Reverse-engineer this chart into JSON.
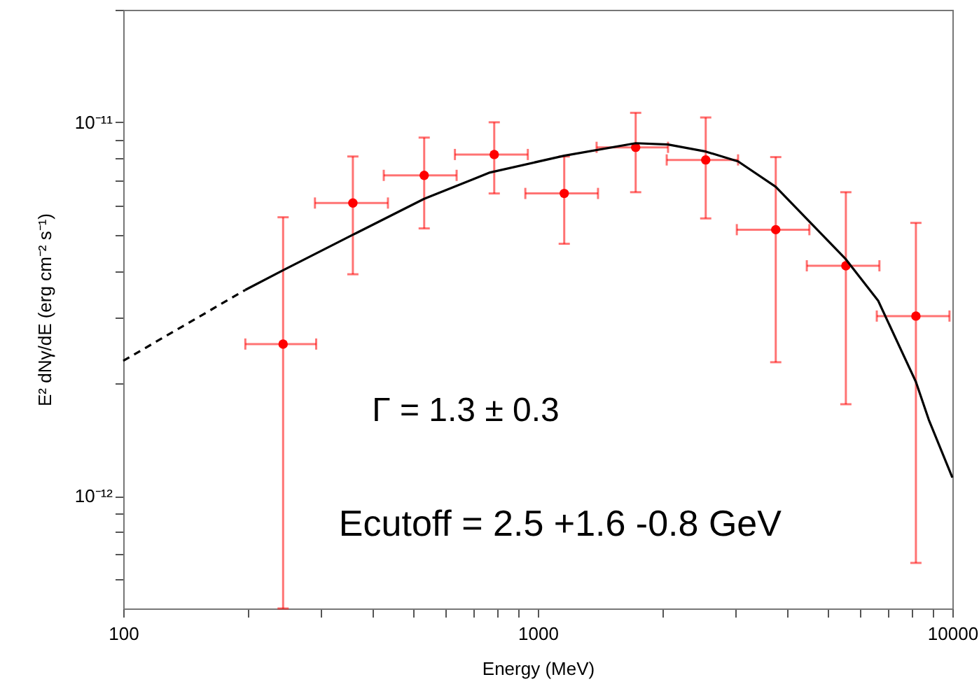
{
  "chart_data": {
    "type": "scatter",
    "xlabel": "Energy (MeV)",
    "ylabel": "E² dNγ/dE (erg cm⁻² s⁻¹)",
    "log": "xy",
    "grid": false,
    "xlim": [
      100,
      10000
    ],
    "ylim": [
      5e-13,
      2e-11
    ],
    "xticks": [
      100,
      {
        "value": 200,
        "label": null
      },
      {
        "value": 300,
        "label": null
      },
      {
        "value": 400,
        "label": null
      },
      {
        "value": 500,
        "label": null
      },
      {
        "value": 600,
        "label": null
      },
      {
        "value": 700,
        "label": null
      },
      {
        "value": 800,
        "label": null
      },
      {
        "value": 900,
        "label": null
      },
      1000,
      {
        "value": 2000,
        "label": null
      },
      {
        "value": 3000,
        "label": null
      },
      {
        "value": 4000,
        "label": null
      },
      {
        "value": 5000,
        "label": null
      },
      {
        "value": 6000,
        "label": null
      },
      {
        "value": 7000,
        "label": null
      },
      {
        "value": 8000,
        "label": null
      },
      {
        "value": 9000,
        "label": null
      },
      10000
    ],
    "yticks": [
      {
        "value": 6e-13,
        "label": null
      },
      {
        "value": 7e-13,
        "label": null
      },
      {
        "value": 8e-13,
        "label": null
      },
      {
        "value": 9e-13,
        "label": null
      },
      {
        "value": 1e-12,
        "label": "10⁻¹²"
      },
      {
        "value": 2e-12,
        "label": null
      },
      {
        "value": 3e-12,
        "label": null
      },
      {
        "value": 4e-12,
        "label": null
      },
      {
        "value": 5e-12,
        "label": null
      },
      {
        "value": 6e-12,
        "label": null
      },
      {
        "value": 7e-12,
        "label": null
      },
      {
        "value": 8e-12,
        "label": null
      },
      {
        "value": 9e-12,
        "label": null
      },
      {
        "value": 1e-11,
        "label": "10⁻¹¹"
      },
      {
        "value": 2e-11,
        "label": null
      }
    ],
    "annotations": [
      "Γ = 1.3 ± 0.3",
      "Ecutoff = 2.5 +1.6 -0.8 GeV"
    ],
    "series": [
      {
        "color": "#ff0000",
        "marker": "circle",
        "x": [
          243,
          358,
          532,
          785,
          1158,
          1722,
          2541,
          3749,
          5534,
          8166
        ],
        "values": [
          2.55e-12,
          6.08e-12,
          7.21e-12,
          8.2e-12,
          6.45e-12,
          8.57e-12,
          7.93e-12,
          5.16e-12,
          4.13e-12,
          3.03e-12
        ],
        "errors": [
          [
            5e-13,
            5.57e-12
          ],
          [
            3.92e-12,
            8.1e-12
          ],
          [
            5.2e-12,
            9.1e-12
          ],
          [
            6.45e-12,
            1e-11
          ],
          [
            4.73e-12,
            8.1e-12
          ],
          [
            6.5e-12,
            1.06e-11
          ],
          [
            5.53e-12,
            1.03e-11
          ],
          [
            2.28e-12,
            8.07e-12
          ],
          [
            1.76e-12,
            6.5e-12
          ],
          [
            6.62e-13,
            5.38e-12
          ]
        ],
        "xerrors": [
          [
            197,
            292
          ],
          [
            290,
            435
          ],
          [
            425,
            637
          ],
          [
            631,
            946
          ],
          [
            933,
            1397
          ],
          [
            1386,
            2061
          ],
          [
            2046,
            3041
          ],
          [
            3020,
            4519
          ],
          [
            4455,
            6668
          ],
          [
            6571,
            9840
          ]
        ]
      },
      {
        "type": "line",
        "color": "#000000",
        "line_style": "dashed",
        "x": [
          100,
          197
        ],
        "values": [
          2.3e-12,
          3.56e-12
        ]
      },
      {
        "type": "line",
        "color": "#000000",
        "line_style": "solid",
        "x": [
          197,
          243,
          358,
          532,
          767,
          1158,
          1722,
          2061,
          2541,
          3041,
          3749,
          5534,
          6622,
          8166,
          8770,
          10000
        ],
        "values": [
          3.56e-12,
          4.02e-12,
          5e-12,
          6.24e-12,
          7.34e-12,
          8.14e-12,
          8.79e-12,
          8.72e-12,
          8.35e-12,
          7.86e-12,
          6.72e-12,
          4.3e-12,
          3.33e-12,
          2.02e-12,
          1.6e-12,
          1.12e-12
        ]
      }
    ]
  }
}
